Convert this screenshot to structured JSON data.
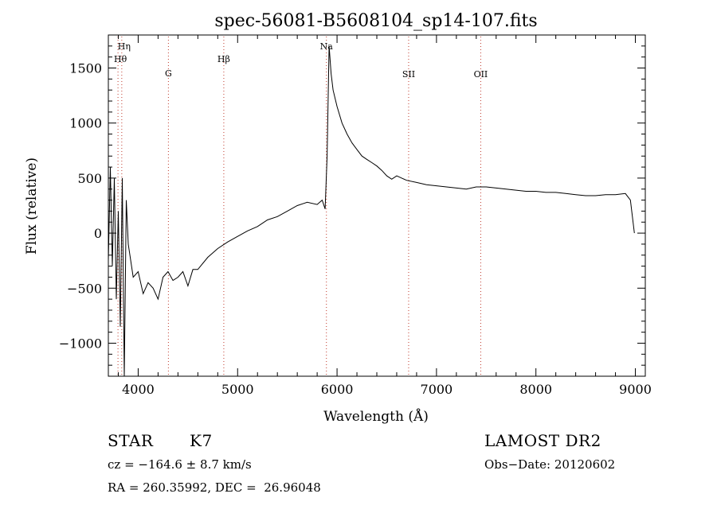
{
  "chart_data": {
    "type": "line",
    "title": "spec-56081-B5608104_sp14-107.fits",
    "xlabel": "Wavelength (Å)",
    "ylabel": "Flux (relative)",
    "xlim": [
      3700,
      9100
    ],
    "ylim": [
      -1300,
      1800
    ],
    "xticks": [
      4000,
      5000,
      6000,
      7000,
      8000,
      9000
    ],
    "yticks": [
      -1000,
      -500,
      0,
      500,
      1000,
      1500
    ],
    "grid": false,
    "series": [
      {
        "x": [
          3700,
          3720,
          3740,
          3760,
          3780,
          3800,
          3820,
          3840,
          3860,
          3880,
          3900,
          3950,
          4000,
          4050,
          4100,
          4150,
          4200,
          4250,
          4300,
          4350,
          4400,
          4450,
          4500,
          4550,
          4600,
          4700,
          4800,
          4900,
          5000,
          5100,
          5200,
          5300,
          5400,
          5500,
          5600,
          5700,
          5800,
          5850,
          5880,
          5900,
          5920,
          5940,
          5960,
          6000,
          6050,
          6100,
          6150,
          6200,
          6250,
          6300,
          6350,
          6400,
          6450,
          6500,
          6550,
          6600,
          6650,
          6700,
          6800,
          6900,
          7000,
          7100,
          7200,
          7300,
          7400,
          7500,
          7600,
          7700,
          7800,
          7900,
          8000,
          8100,
          8200,
          8300,
          8400,
          8500,
          8600,
          8700,
          8800,
          8900,
          8950,
          8970,
          8990
        ],
        "y": [
          -250,
          600,
          -300,
          500,
          -600,
          200,
          -850,
          500,
          -1300,
          300,
          -100,
          -400,
          -350,
          -550,
          -450,
          -500,
          -600,
          -400,
          -350,
          -430,
          -400,
          -350,
          -480,
          -330,
          -330,
          -220,
          -140,
          -80,
          -30,
          20,
          60,
          120,
          150,
          200,
          250,
          280,
          260,
          300,
          220,
          700,
          1700,
          1450,
          1300,
          1150,
          1000,
          900,
          820,
          760,
          700,
          670,
          640,
          610,
          570,
          520,
          490,
          520,
          500,
          480,
          460,
          440,
          430,
          420,
          410,
          400,
          420,
          420,
          410,
          400,
          390,
          380,
          380,
          370,
          370,
          360,
          350,
          340,
          340,
          350,
          350,
          360,
          300,
          150,
          0
        ]
      }
    ],
    "lines": [
      {
        "label": "Hη",
        "x": 3835
      },
      {
        "label": "Hθ",
        "x": 3797
      },
      {
        "label": "G",
        "x": 4304
      },
      {
        "label": "Hβ",
        "x": 4861
      },
      {
        "label": "Na",
        "x": 5893
      },
      {
        "label": "SII",
        "x": 6720
      },
      {
        "label": "OII",
        "x": 7445
      }
    ]
  },
  "info": {
    "class": "STAR",
    "subclass": "K7",
    "cz": "cz = −164.6 ± 8.7 km/s",
    "radec": "RA = 260.35992, DEC =  26.96048",
    "survey": "LAMOST DR2",
    "obs_date": "Obs−Date: 20120602"
  }
}
